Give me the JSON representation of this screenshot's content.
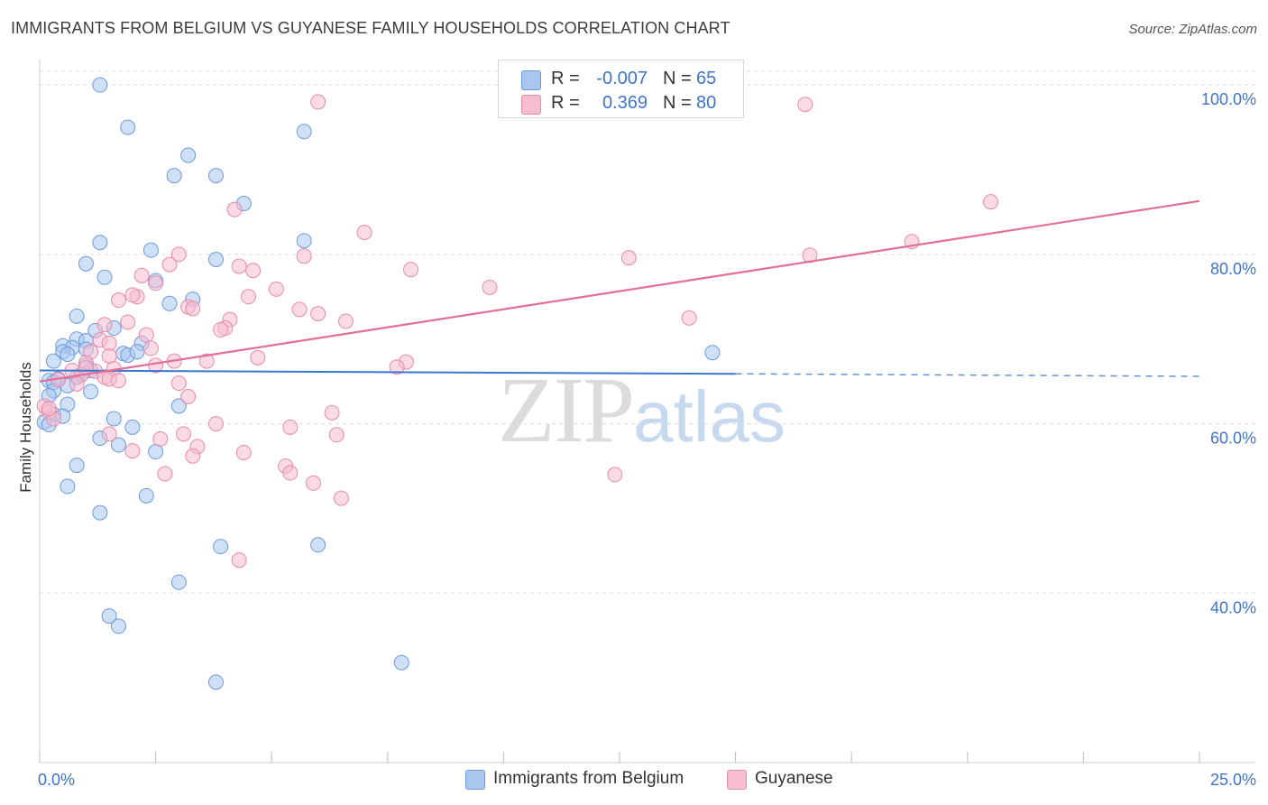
{
  "header": {
    "title": "IMMIGRANTS FROM BELGIUM VS GUYANESE FAMILY HOUSEHOLDS CORRELATION CHART",
    "source": "Source: ZipAtlas.com"
  },
  "watermark": {
    "zip": "ZIP",
    "atlas": "atlas"
  },
  "legend": {
    "series": [
      {
        "r_label": "R =",
        "r_value": "-0.007",
        "n_label": "N =",
        "n_value": "65"
      },
      {
        "r_label": "R =",
        "r_value": "0.369",
        "n_label": "N =",
        "n_value": "80"
      }
    ]
  },
  "colors": {
    "belgium_fill": "#a9c6ef",
    "belgium_stroke": "#6a9bdc",
    "belgium_line": "#3a78d0",
    "guyanese_fill": "#f6bcd0",
    "guyanese_stroke": "#e98aa9",
    "guyanese_line": "#e0709a",
    "grid": "#dddddd",
    "tick_label": "#3f74c8"
  },
  "chart_data": {
    "type": "scatter",
    "title": "IMMIGRANTS FROM BELGIUM VS GUYANESE FAMILY HOUSEHOLDS CORRELATION CHART",
    "xlabel": "",
    "ylabel": "Family Households",
    "xlim": [
      0,
      25
    ],
    "ylim": [
      20,
      103
    ],
    "x_tick_labels": [
      "0.0%",
      "25.0%"
    ],
    "y_ticks": [
      40,
      60,
      80,
      100
    ],
    "y_tick_labels": [
      "40.0%",
      "60.0%",
      "80.0%",
      "100.0%"
    ],
    "grid": true,
    "series": [
      {
        "name": "Immigrants from Belgium",
        "R": -0.007,
        "N": 65,
        "trend": {
          "x0": 0,
          "y0": 66.3,
          "x1": 15,
          "y1": 65.9,
          "dashed_to_x": 25,
          "dashed_to_y": 65.6
        },
        "points": [
          [
            1.3,
            100.0
          ],
          [
            1.9,
            95.0
          ],
          [
            5.7,
            94.5
          ],
          [
            3.2,
            91.7
          ],
          [
            2.9,
            89.3
          ],
          [
            3.8,
            89.3
          ],
          [
            4.4,
            86.0
          ],
          [
            5.7,
            81.6
          ],
          [
            1.3,
            81.4
          ],
          [
            2.4,
            80.5
          ],
          [
            3.8,
            79.4
          ],
          [
            1.0,
            78.9
          ],
          [
            1.4,
            77.3
          ],
          [
            2.5,
            76.9
          ],
          [
            3.3,
            74.7
          ],
          [
            2.8,
            74.2
          ],
          [
            0.8,
            72.7
          ],
          [
            1.6,
            71.3
          ],
          [
            1.2,
            71.0
          ],
          [
            0.8,
            70.0
          ],
          [
            1.0,
            69.8
          ],
          [
            0.5,
            69.2
          ],
          [
            2.2,
            69.5
          ],
          [
            0.7,
            69.0
          ],
          [
            1.0,
            68.8
          ],
          [
            0.5,
            68.5
          ],
          [
            0.6,
            68.2
          ],
          [
            1.8,
            68.3
          ],
          [
            1.9,
            68.1
          ],
          [
            2.1,
            68.5
          ],
          [
            0.3,
            67.4
          ],
          [
            1.0,
            66.9
          ],
          [
            1.1,
            66.3
          ],
          [
            0.9,
            65.8
          ],
          [
            0.8,
            65.5
          ],
          [
            0.4,
            65.3
          ],
          [
            0.2,
            65.1
          ],
          [
            0.3,
            64.9
          ],
          [
            0.6,
            64.5
          ],
          [
            0.3,
            63.9
          ],
          [
            1.1,
            63.8
          ],
          [
            0.2,
            63.3
          ],
          [
            0.6,
            62.3
          ],
          [
            3.0,
            62.1
          ],
          [
            0.3,
            61.1
          ],
          [
            0.5,
            60.9
          ],
          [
            1.6,
            60.6
          ],
          [
            0.1,
            60.2
          ],
          [
            0.2,
            59.9
          ],
          [
            2.0,
            59.6
          ],
          [
            1.3,
            58.3
          ],
          [
            1.7,
            57.5
          ],
          [
            2.5,
            56.7
          ],
          [
            0.8,
            55.1
          ],
          [
            0.6,
            52.6
          ],
          [
            2.3,
            51.5
          ],
          [
            1.3,
            49.5
          ],
          [
            3.9,
            45.5
          ],
          [
            6.0,
            45.7
          ],
          [
            3.0,
            41.3
          ],
          [
            1.5,
            37.3
          ],
          [
            1.7,
            36.1
          ],
          [
            7.8,
            31.8
          ],
          [
            3.8,
            29.5
          ],
          [
            14.5,
            68.4
          ]
        ]
      },
      {
        "name": "Guyanese",
        "R": 0.369,
        "N": 80,
        "trend": {
          "x0": 0,
          "y0": 65.0,
          "x1": 25,
          "y1": 86.3
        },
        "points": [
          [
            6.0,
            98.0
          ],
          [
            16.5,
            97.7
          ],
          [
            20.5,
            86.2
          ],
          [
            4.2,
            85.3
          ],
          [
            7.0,
            82.6
          ],
          [
            18.8,
            81.5
          ],
          [
            3.0,
            80.0
          ],
          [
            5.7,
            79.8
          ],
          [
            12.7,
            79.6
          ],
          [
            16.6,
            79.9
          ],
          [
            2.8,
            78.8
          ],
          [
            4.3,
            78.6
          ],
          [
            4.6,
            78.1
          ],
          [
            8.0,
            78.2
          ],
          [
            2.2,
            77.5
          ],
          [
            2.5,
            76.6
          ],
          [
            5.1,
            75.9
          ],
          [
            9.7,
            76.1
          ],
          [
            2.1,
            75.0
          ],
          [
            2.0,
            75.2
          ],
          [
            1.7,
            74.6
          ],
          [
            4.5,
            75.0
          ],
          [
            3.2,
            73.8
          ],
          [
            3.3,
            73.6
          ],
          [
            5.6,
            73.5
          ],
          [
            6.0,
            73.0
          ],
          [
            4.1,
            72.3
          ],
          [
            1.9,
            72.0
          ],
          [
            6.6,
            72.1
          ],
          [
            1.4,
            71.7
          ],
          [
            4.0,
            71.3
          ],
          [
            3.9,
            71.1
          ],
          [
            14.0,
            72.5
          ],
          [
            2.3,
            70.5
          ],
          [
            1.3,
            69.9
          ],
          [
            1.5,
            69.5
          ],
          [
            2.4,
            68.9
          ],
          [
            1.1,
            68.5
          ],
          [
            1.5,
            68.0
          ],
          [
            4.7,
            67.8
          ],
          [
            2.9,
            67.4
          ],
          [
            3.6,
            67.4
          ],
          [
            1.0,
            67.2
          ],
          [
            7.9,
            67.3
          ],
          [
            2.5,
            66.9
          ],
          [
            7.7,
            66.7
          ],
          [
            1.6,
            66.5
          ],
          [
            1.2,
            66.2
          ],
          [
            0.7,
            66.3
          ],
          [
            0.9,
            65.8
          ],
          [
            1.4,
            65.5
          ],
          [
            1.5,
            65.3
          ],
          [
            0.4,
            65.2
          ],
          [
            1.7,
            65.1
          ],
          [
            3.0,
            64.8
          ],
          [
            0.8,
            64.7
          ],
          [
            3.2,
            63.2
          ],
          [
            0.1,
            62.1
          ],
          [
            0.2,
            61.4
          ],
          [
            6.3,
            61.3
          ],
          [
            0.3,
            60.6
          ],
          [
            3.8,
            60.0
          ],
          [
            5.4,
            59.6
          ],
          [
            1.5,
            58.8
          ],
          [
            3.1,
            58.8
          ],
          [
            6.4,
            58.7
          ],
          [
            2.6,
            58.2
          ],
          [
            3.4,
            57.3
          ],
          [
            2.0,
            56.8
          ],
          [
            4.4,
            56.6
          ],
          [
            3.3,
            56.2
          ],
          [
            5.3,
            55.0
          ],
          [
            5.4,
            54.2
          ],
          [
            2.7,
            54.1
          ],
          [
            12.4,
            54.0
          ],
          [
            5.9,
            53.0
          ],
          [
            6.5,
            51.2
          ],
          [
            4.3,
            43.9
          ],
          [
            0.2,
            61.8
          ],
          [
            1.0,
            66.6
          ]
        ]
      }
    ]
  },
  "bottom_legend": [
    {
      "label": "Immigrants from Belgium"
    },
    {
      "label": "Guyanese"
    }
  ]
}
